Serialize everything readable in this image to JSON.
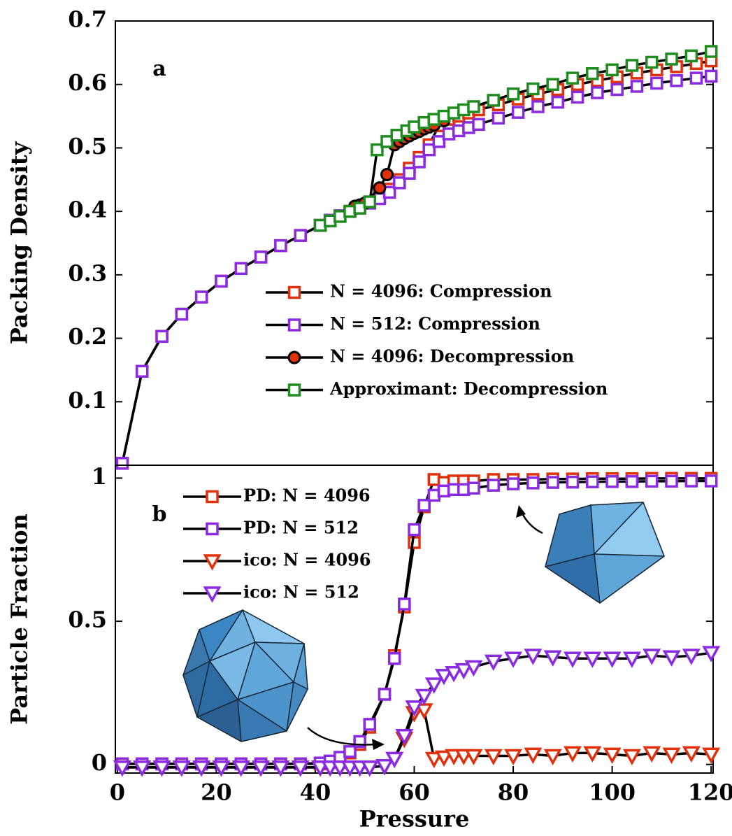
{
  "chart_data": [
    {
      "type": "line",
      "panel_label": "a",
      "ylabel": "Packing Density",
      "xlim": [
        -0.4,
        120.4
      ],
      "ylim": [
        0,
        0.7
      ],
      "yticks": [
        0.1,
        0.2,
        0.3,
        0.4,
        0.5,
        0.6,
        0.7
      ],
      "legend": "center",
      "series": [
        {
          "name": "N = 4096: Compression",
          "color": "#e0300c",
          "marker": "square",
          "x": [
            1,
            5,
            9,
            13,
            17,
            21,
            25,
            29,
            33,
            37,
            41,
            43,
            45,
            47,
            49,
            51,
            53,
            55,
            57,
            59,
            61,
            63,
            65,
            67,
            69,
            71,
            73,
            77,
            81,
            85,
            89,
            93,
            97,
            101,
            105,
            109,
            113,
            117,
            120
          ],
          "values": [
            0.003,
            0.148,
            0.203,
            0.238,
            0.265,
            0.29,
            0.31,
            0.328,
            0.346,
            0.362,
            0.378,
            0.386,
            0.393,
            0.4,
            0.406,
            0.413,
            0.423,
            0.435,
            0.45,
            0.468,
            0.485,
            0.505,
            0.535,
            0.545,
            0.55,
            0.555,
            0.56,
            0.568,
            0.577,
            0.585,
            0.592,
            0.6,
            0.606,
            0.612,
            0.618,
            0.623,
            0.628,
            0.633,
            0.637
          ]
        },
        {
          "name": "N = 512: Compression",
          "color": "#8a2be2",
          "marker": "square",
          "x": [
            1,
            5,
            9,
            13,
            17,
            21,
            25,
            29,
            33,
            37,
            41,
            43,
            45,
            47,
            49,
            51,
            53,
            55,
            57,
            59,
            61,
            63,
            65,
            67,
            69,
            71,
            73,
            77,
            81,
            85,
            89,
            93,
            97,
            101,
            105,
            109,
            113,
            117,
            120
          ],
          "values": [
            0.003,
            0.148,
            0.203,
            0.238,
            0.265,
            0.29,
            0.31,
            0.328,
            0.346,
            0.362,
            0.378,
            0.386,
            0.393,
            0.4,
            0.406,
            0.413,
            0.42,
            0.43,
            0.445,
            0.46,
            0.478,
            0.497,
            0.51,
            0.522,
            0.527,
            0.532,
            0.537,
            0.547,
            0.556,
            0.565,
            0.572,
            0.58,
            0.587,
            0.592,
            0.597,
            0.602,
            0.606,
            0.61,
            0.613
          ]
        },
        {
          "name": "N = 4096: Decompression",
          "color": "#e0300c",
          "marker": "circle",
          "x": [
            48,
            49,
            50,
            53,
            54.5,
            56,
            57,
            58,
            59,
            60,
            61,
            62,
            63,
            64,
            66
          ],
          "values": [
            0.408,
            0.41,
            0.413,
            0.437,
            0.458,
            0.505,
            0.51,
            0.515,
            0.519,
            0.523,
            0.526,
            0.53,
            0.533,
            0.536,
            0.543
          ]
        },
        {
          "name": "Approximant: Decompression",
          "color": "#1e8c1e",
          "marker": "square",
          "x": [
            41,
            43,
            45,
            47,
            49,
            51,
            52.5,
            54.5,
            56.5,
            58.5,
            60,
            62,
            64,
            66,
            68,
            70,
            72,
            76,
            80,
            84,
            88,
            92,
            96,
            100,
            104,
            108,
            112,
            116,
            120
          ],
          "values": [
            0.378,
            0.385,
            0.392,
            0.4,
            0.405,
            0.415,
            0.497,
            0.51,
            0.52,
            0.527,
            0.533,
            0.54,
            0.545,
            0.55,
            0.555,
            0.56,
            0.565,
            0.575,
            0.585,
            0.593,
            0.6,
            0.61,
            0.617,
            0.623,
            0.63,
            0.635,
            0.64,
            0.645,
            0.652
          ]
        }
      ]
    },
    {
      "type": "line",
      "panel_label": "b",
      "ylabel": "Particle Fraction",
      "xlabel": "Pressure",
      "xlim": [
        -0.4,
        120.4
      ],
      "ylim": [
        -0.03,
        1.045
      ],
      "yticks": [
        0,
        0.5,
        1
      ],
      "xticks": [
        0,
        20,
        40,
        60,
        80,
        100,
        120
      ],
      "legend": "upper-left",
      "series": [
        {
          "name": "PD: N = 4096",
          "color": "#e0300c",
          "marker": "square",
          "x": [
            1,
            5,
            9,
            13,
            17,
            21,
            25,
            29,
            33,
            37,
            41,
            43,
            45,
            47,
            49,
            51,
            54,
            56,
            58,
            60,
            62,
            64,
            66,
            68,
            70,
            72,
            76,
            80,
            84,
            88,
            92,
            96,
            100,
            104,
            108,
            112,
            116,
            120
          ],
          "values": [
            0.002,
            0.002,
            0.002,
            0.002,
            0.002,
            0.002,
            0.002,
            0.002,
            0.002,
            0.002,
            0.002,
            0.01,
            0.02,
            0.04,
            0.07,
            0.13,
            0.245,
            0.38,
            0.55,
            0.775,
            0.9,
            0.995,
            0.985,
            0.99,
            0.99,
            0.99,
            0.995,
            0.995,
            0.995,
            0.997,
            0.997,
            0.998,
            0.998,
            0.998,
            0.999,
            0.999,
            0.999,
            0.999
          ]
        },
        {
          "name": "PD: N = 512",
          "color": "#8a2be2",
          "marker": "square",
          "x": [
            1,
            5,
            9,
            13,
            17,
            21,
            25,
            29,
            33,
            37,
            41,
            43,
            45,
            47,
            49,
            51,
            54,
            56,
            58,
            60,
            62,
            64,
            66,
            68,
            70,
            72,
            76,
            80,
            84,
            88,
            92,
            96,
            100,
            104,
            108,
            112,
            116,
            120
          ],
          "values": [
            0.002,
            0.002,
            0.002,
            0.002,
            0.002,
            0.002,
            0.002,
            0.002,
            0.002,
            0.002,
            0.005,
            0.012,
            0.025,
            0.045,
            0.08,
            0.14,
            0.245,
            0.37,
            0.56,
            0.82,
            0.905,
            0.94,
            0.955,
            0.96,
            0.96,
            0.965,
            0.975,
            0.98,
            0.983,
            0.985,
            0.986,
            0.987,
            0.988,
            0.988,
            0.989,
            0.989,
            0.99,
            0.99
          ]
        },
        {
          "name": "ico: N = 4096",
          "color": "#e0300c",
          "marker": "triangle-down",
          "x": [
            1,
            5,
            9,
            13,
            17,
            21,
            25,
            29,
            33,
            37,
            41,
            43,
            45,
            47,
            49,
            51,
            54,
            56,
            58,
            60,
            62,
            64,
            66,
            68,
            70,
            72,
            76,
            80,
            84,
            88,
            92,
            96,
            100,
            104,
            108,
            112,
            116,
            120
          ],
          "values": [
            -0.01,
            -0.01,
            -0.01,
            -0.01,
            -0.01,
            -0.01,
            -0.01,
            -0.01,
            -0.01,
            -0.01,
            -0.01,
            -0.01,
            -0.01,
            -0.01,
            -0.01,
            -0.01,
            -0.005,
            0.02,
            0.09,
            0.18,
            0.19,
            0.02,
            0.025,
            0.03,
            0.03,
            0.03,
            0.03,
            0.03,
            0.035,
            0.03,
            0.04,
            0.04,
            0.035,
            0.03,
            0.04,
            0.035,
            0.04,
            0.035
          ]
        },
        {
          "name": "ico: N = 512",
          "color": "#8a2be2",
          "marker": "triangle-down",
          "x": [
            1,
            5,
            9,
            13,
            17,
            21,
            25,
            29,
            33,
            37,
            41,
            43,
            45,
            47,
            49,
            51,
            54,
            56,
            58,
            60,
            62,
            64,
            66,
            68,
            70,
            72,
            76,
            80,
            84,
            88,
            92,
            96,
            100,
            104,
            108,
            112,
            116,
            120
          ],
          "values": [
            -0.01,
            -0.01,
            -0.01,
            -0.01,
            -0.01,
            -0.01,
            -0.01,
            -0.01,
            -0.01,
            -0.01,
            -0.01,
            -0.01,
            -0.01,
            -0.01,
            -0.01,
            -0.01,
            -0.005,
            0.02,
            0.1,
            0.2,
            0.24,
            0.28,
            0.31,
            0.32,
            0.33,
            0.34,
            0.36,
            0.37,
            0.38,
            0.375,
            0.37,
            0.37,
            0.37,
            0.37,
            0.38,
            0.375,
            0.38,
            0.39
          ]
        }
      ]
    }
  ]
}
